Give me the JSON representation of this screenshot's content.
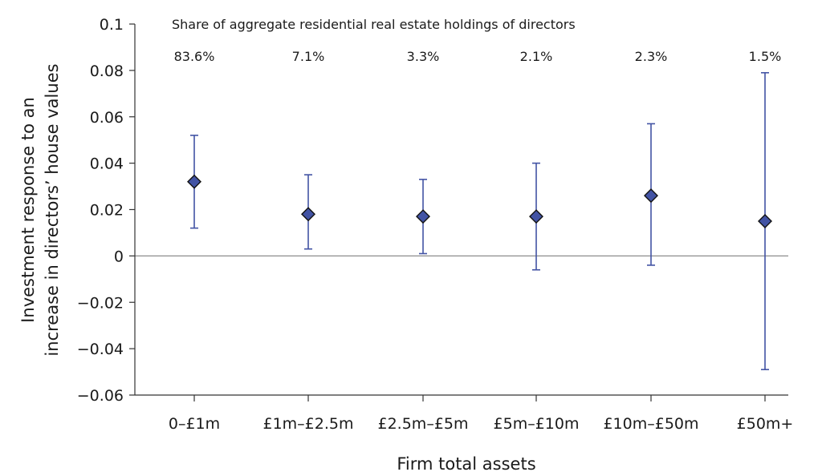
{
  "chart_data": {
    "type": "scatter",
    "annotation_header": "Share of aggregate residential real estate holdings of directors",
    "categories": [
      "0–£1m",
      "£1m–£2.5m",
      "£2.5m–£5m",
      "£5m–£10m",
      "£10m–£50m",
      "£50m+"
    ],
    "shares": [
      "83.6%",
      "7.1%",
      "3.3%",
      "2.1%",
      "2.3%",
      "1.5%"
    ],
    "values": [
      0.032,
      0.018,
      0.017,
      0.017,
      0.026,
      0.015
    ],
    "ci_low": [
      0.012,
      0.003,
      0.001,
      -0.006,
      -0.004,
      -0.049
    ],
    "ci_high": [
      0.052,
      0.035,
      0.033,
      0.04,
      0.057,
      0.079
    ],
    "yticks": [
      0.1,
      0.08,
      0.06,
      0.04,
      0.02,
      0,
      -0.02,
      -0.04,
      -0.06
    ],
    "ytick_labels": [
      "0.1",
      "0.08",
      "0.06",
      "0.04",
      "0.02",
      "0",
      "−0.02",
      "−0.04",
      "−0.06"
    ],
    "ylim": [
      -0.06,
      0.1
    ],
    "xlabel": "Firm total assets",
    "ylabel_line1": "Investment response to an",
    "ylabel_line2": "increase in directors’ house values",
    "grid": false,
    "zero_line": true,
    "colors": {
      "marker": "#4253a4",
      "error_bar": "#4253a4",
      "axis": "#333333",
      "zero_line": "#8c8c8c"
    }
  }
}
